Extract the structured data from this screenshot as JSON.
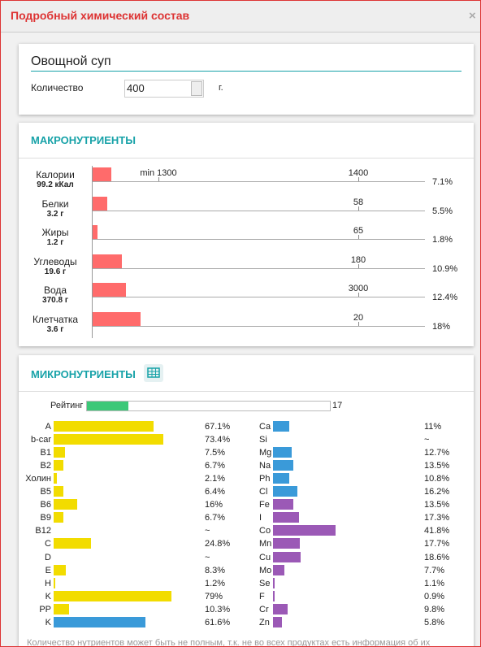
{
  "header": {
    "title": "Подробный химический состав",
    "close": "×"
  },
  "dish": {
    "name": "Овощной суп",
    "quantity_label": "Количество",
    "quantity": 400,
    "unit": "г."
  },
  "macro": {
    "title": "МАКРОНУТРИЕНТЫ",
    "color": "#ff6b6b",
    "rows": [
      {
        "name": "Калории",
        "amount": "99.2 кКал",
        "ticks": [
          "min 1300",
          "1400"
        ],
        "percent": 7.1,
        "percent_label": "7.1%"
      },
      {
        "name": "Белки",
        "amount": "3.2 г",
        "ticks": [
          "58"
        ],
        "percent": 5.5,
        "percent_label": "5.5%"
      },
      {
        "name": "Жиры",
        "amount": "1.2 г",
        "ticks": [
          "65"
        ],
        "percent": 1.8,
        "percent_label": "1.8%"
      },
      {
        "name": "Углеводы",
        "amount": "19.6 г",
        "ticks": [
          "180"
        ],
        "percent": 10.9,
        "percent_label": "10.9%"
      },
      {
        "name": "Вода",
        "amount": "370.8 г",
        "ticks": [
          "3000"
        ],
        "percent": 12.4,
        "percent_label": "12.4%"
      },
      {
        "name": "Клетчатка",
        "amount": "3.6 г",
        "ticks": [
          "20"
        ],
        "percent": 18,
        "percent_label": "18%"
      }
    ]
  },
  "micro": {
    "title": "МИКРОНУТРИЕНТЫ",
    "rating": {
      "label": "Рейтинг",
      "value": 17,
      "color": "#3cc878"
    },
    "left": [
      {
        "name": "A",
        "value": 67.1,
        "label": "67.1%",
        "color": "#f2dc00"
      },
      {
        "name": "b-car",
        "value": 73.4,
        "label": "73.4%",
        "color": "#f2dc00"
      },
      {
        "name": "B1",
        "value": 7.5,
        "label": "7.5%",
        "color": "#f2dc00"
      },
      {
        "name": "B2",
        "value": 6.7,
        "label": "6.7%",
        "color": "#f2dc00"
      },
      {
        "name": "Холин",
        "value": 2.1,
        "label": "2.1%",
        "color": "#f2dc00"
      },
      {
        "name": "B5",
        "value": 6.4,
        "label": "6.4%",
        "color": "#f2dc00"
      },
      {
        "name": "B6",
        "value": 16,
        "label": "16%",
        "color": "#f2dc00"
      },
      {
        "name": "B9",
        "value": 6.7,
        "label": "6.7%",
        "color": "#f2dc00"
      },
      {
        "name": "B12",
        "value": null,
        "label": "~",
        "color": "#f2dc00"
      },
      {
        "name": "C",
        "value": 24.8,
        "label": "24.8%",
        "color": "#f2dc00"
      },
      {
        "name": "D",
        "value": null,
        "label": "~",
        "color": "#f2dc00"
      },
      {
        "name": "E",
        "value": 8.3,
        "label": "8.3%",
        "color": "#f2dc00"
      },
      {
        "name": "H",
        "value": 1.2,
        "label": "1.2%",
        "color": "#f2dc00"
      },
      {
        "name": "K",
        "value": 79,
        "label": "79%",
        "color": "#f2dc00"
      },
      {
        "name": "PP",
        "value": 10.3,
        "label": "10.3%",
        "color": "#f2dc00"
      },
      {
        "name": "K",
        "value": 61.6,
        "label": "61.6%",
        "color": "#3a9ad9"
      }
    ],
    "right": [
      {
        "name": "Ca",
        "value": 11,
        "label": "11%",
        "color": "#3a9ad9"
      },
      {
        "name": "Si",
        "value": null,
        "label": "~",
        "color": "#3a9ad9"
      },
      {
        "name": "Mg",
        "value": 12.7,
        "label": "12.7%",
        "color": "#3a9ad9"
      },
      {
        "name": "Na",
        "value": 13.5,
        "label": "13.5%",
        "color": "#3a9ad9"
      },
      {
        "name": "Ph",
        "value": 10.8,
        "label": "10.8%",
        "color": "#3a9ad9"
      },
      {
        "name": "Cl",
        "value": 16.2,
        "label": "16.2%",
        "color": "#3a9ad9"
      },
      {
        "name": "Fe",
        "value": 13.5,
        "label": "13.5%",
        "color": "#9b59b6"
      },
      {
        "name": "I",
        "value": 17.3,
        "label": "17.3%",
        "color": "#9b59b6"
      },
      {
        "name": "Co",
        "value": 41.8,
        "label": "41.8%",
        "color": "#9b59b6"
      },
      {
        "name": "Mn",
        "value": 17.7,
        "label": "17.7%",
        "color": "#9b59b6"
      },
      {
        "name": "Cu",
        "value": 18.6,
        "label": "18.6%",
        "color": "#9b59b6"
      },
      {
        "name": "Mo",
        "value": 7.7,
        "label": "7.7%",
        "color": "#9b59b6"
      },
      {
        "name": "Se",
        "value": 1.1,
        "label": "1.1%",
        "color": "#9b59b6"
      },
      {
        "name": "F",
        "value": 0.9,
        "label": "0.9%",
        "color": "#9b59b6"
      },
      {
        "name": "Cr",
        "value": 9.8,
        "label": "9.8%",
        "color": "#9b59b6"
      },
      {
        "name": "Zn",
        "value": 5.8,
        "label": "5.8%",
        "color": "#9b59b6"
      }
    ],
    "footnote": "Количество нутриентов может быть не полным, т.к. не во всех продуктах есть информация об их"
  }
}
